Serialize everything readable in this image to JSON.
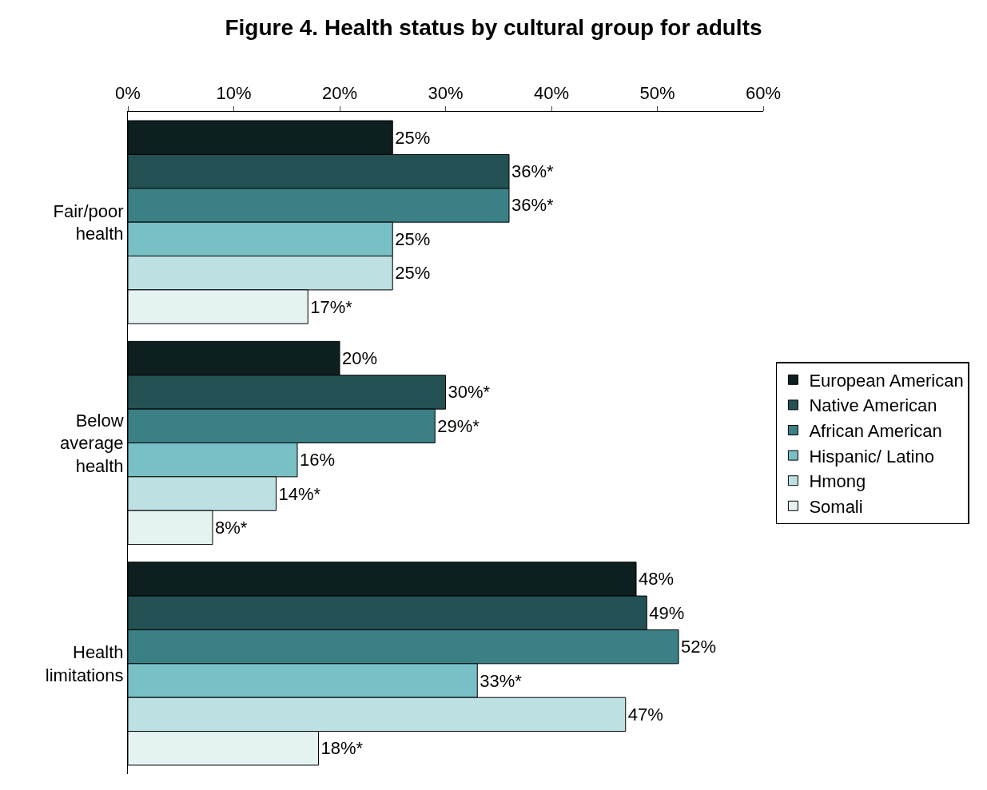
{
  "chart_data": {
    "type": "bar",
    "orientation": "horizontal",
    "title": "Figure 4. Health status by cultural group for adults",
    "categories": [
      "Fair/poor health",
      "Below average health",
      "Health limitations"
    ],
    "series": [
      {
        "name": "European American",
        "color": "#0d1f1f",
        "values": [
          25,
          20,
          48
        ],
        "value_labels": [
          "25%",
          "20%",
          "48%"
        ]
      },
      {
        "name": "Native American",
        "color": "#245153",
        "values": [
          36,
          30,
          49
        ],
        "value_labels": [
          "36%*",
          "30%*",
          "49%"
        ]
      },
      {
        "name": "African American",
        "color": "#3a8085",
        "values": [
          36,
          29,
          52
        ],
        "value_labels": [
          "36%*",
          "29%*",
          "52%"
        ]
      },
      {
        "name": "Hispanic/ Latino",
        "color": "#78c0c5",
        "values": [
          25,
          16,
          33
        ],
        "value_labels": [
          "25%",
          "16%",
          "33%*"
        ]
      },
      {
        "name": "Hmong",
        "color": "#bde0e2",
        "values": [
          25,
          14,
          47
        ],
        "value_labels": [
          "25%",
          "14%*",
          "47%"
        ]
      },
      {
        "name": "Somali",
        "color": "#e4f2f2",
        "values": [
          17,
          8,
          18
        ],
        "value_labels": [
          "17%*",
          "8%*",
          "18%*"
        ]
      }
    ],
    "xlim": [
      0,
      60
    ],
    "xticks": [
      {
        "value": 0,
        "label": "0%"
      },
      {
        "value": 10,
        "label": "10%"
      },
      {
        "value": 20,
        "label": "20%"
      },
      {
        "value": 30,
        "label": "30%"
      },
      {
        "value": 40,
        "label": "40%"
      },
      {
        "value": 50,
        "label": "50%"
      },
      {
        "value": 60,
        "label": "60%"
      }
    ],
    "grid": false,
    "legend": "right"
  }
}
